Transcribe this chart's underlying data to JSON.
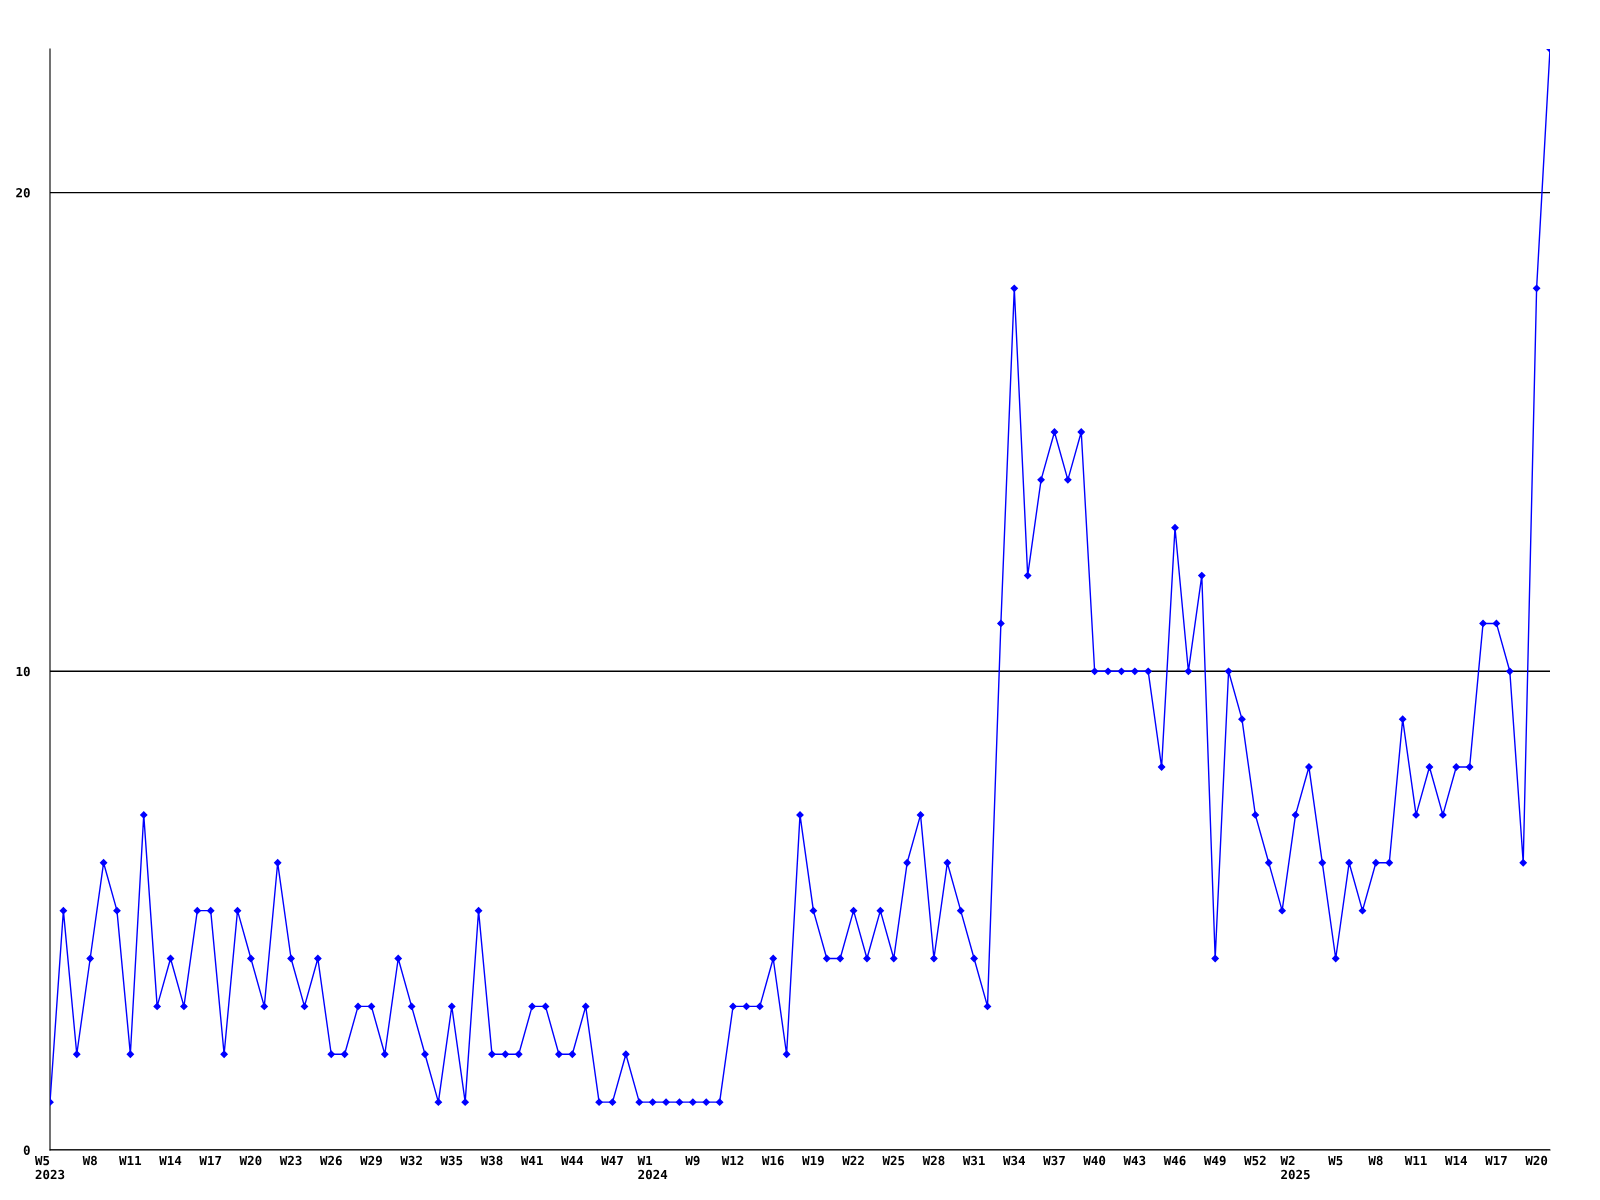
{
  "chart_data": {
    "type": "line",
    "categories": [
      "W5\n2023",
      null,
      null,
      "W8",
      null,
      null,
      "W11",
      null,
      null,
      "W14",
      null,
      null,
      "W17",
      null,
      null,
      "W20",
      null,
      null,
      "W23",
      null,
      null,
      "W26",
      null,
      null,
      "W29",
      null,
      null,
      "W32",
      null,
      null,
      "W35",
      null,
      null,
      "W38",
      null,
      null,
      "W41",
      null,
      null,
      "W44",
      null,
      null,
      "W47",
      null,
      null,
      "W1\n2024",
      null,
      null,
      "W9",
      null,
      null,
      "W12",
      null,
      null,
      "W16",
      null,
      null,
      "W19",
      null,
      null,
      "W22",
      null,
      null,
      "W25",
      null,
      null,
      "W28",
      null,
      null,
      "W31",
      null,
      null,
      "W34",
      null,
      null,
      "W37",
      null,
      null,
      "W40",
      null,
      null,
      "W43",
      null,
      null,
      "W46",
      null,
      null,
      "W49",
      null,
      null,
      "W52",
      null,
      null,
      "W2\n2025",
      null,
      null,
      "W5",
      null,
      null,
      "W8",
      null,
      null,
      "W11",
      null,
      null,
      "W14",
      null,
      null,
      "W17",
      null,
      null,
      "W20",
      null
    ],
    "series": [
      {
        "color": "#0000ff",
        "values": [
          1,
          5,
          2,
          4,
          6,
          5,
          2,
          7,
          3,
          4,
          3,
          5,
          5,
          2,
          5,
          4,
          3,
          6,
          4,
          3,
          4,
          2,
          2,
          3,
          3,
          2,
          4,
          3,
          2,
          1,
          3,
          1,
          5,
          2,
          2,
          2,
          3,
          3,
          2,
          2,
          3,
          1,
          1,
          2,
          1,
          1,
          1,
          1,
          1,
          1,
          1,
          3,
          3,
          3,
          4,
          2,
          7,
          5,
          4,
          4,
          5,
          4,
          5,
          4,
          6,
          7,
          4,
          6,
          5,
          4,
          3,
          11,
          18,
          12,
          14,
          15,
          14,
          15,
          10,
          10,
          10,
          10,
          10,
          8,
          13,
          10,
          12,
          4,
          10,
          9,
          7,
          6,
          5,
          7,
          8,
          6,
          4,
          6,
          5,
          6,
          6,
          9,
          7,
          8,
          7,
          8,
          8,
          11,
          11,
          10,
          6,
          18,
          23
        ]
      }
    ],
    "ylim": [
      0,
      23
    ],
    "yticks": [
      0,
      10,
      20
    ],
    "grid": "y",
    "marker": "diamond",
    "line_style": "solid"
  }
}
